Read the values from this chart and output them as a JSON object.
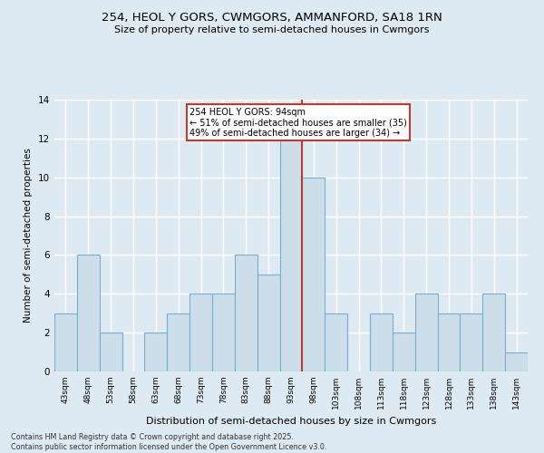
{
  "title1": "254, HEOL Y GORS, CWMGORS, AMMANFORD, SA18 1RN",
  "title2": "Size of property relative to semi-detached houses in Cwmgors",
  "xlabel": "Distribution of semi-detached houses by size in Cwmgors",
  "ylabel": "Number of semi-detached properties",
  "categories": [
    "43sqm",
    "48sqm",
    "53sqm",
    "58sqm",
    "63sqm",
    "68sqm",
    "73sqm",
    "78sqm",
    "83sqm",
    "88sqm",
    "93sqm",
    "98sqm",
    "103sqm",
    "108sqm",
    "113sqm",
    "118sqm",
    "123sqm",
    "128sqm",
    "133sqm",
    "138sqm",
    "143sqm"
  ],
  "values": [
    3,
    6,
    2,
    0,
    2,
    3,
    4,
    4,
    6,
    5,
    12,
    10,
    3,
    0,
    3,
    2,
    4,
    3,
    3,
    4,
    1
  ],
  "bar_color": "#ccdee9",
  "bar_edge_color": "#7baec8",
  "vline_color": "#c0392b",
  "annotation_text": "254 HEOL Y GORS: 94sqm\n← 51% of semi-detached houses are smaller (35)\n49% of semi-detached houses are larger (34) →",
  "annotation_box_color": "white",
  "annotation_box_edge_color": "#c0392b",
  "ylim": [
    0,
    14
  ],
  "yticks": [
    0,
    2,
    4,
    6,
    8,
    10,
    12,
    14
  ],
  "footer": "Contains HM Land Registry data © Crown copyright and database right 2025.\nContains public sector information licensed under the Open Government Licence v3.0.",
  "bg_color": "#ddeaf4",
  "grid_color": "white"
}
